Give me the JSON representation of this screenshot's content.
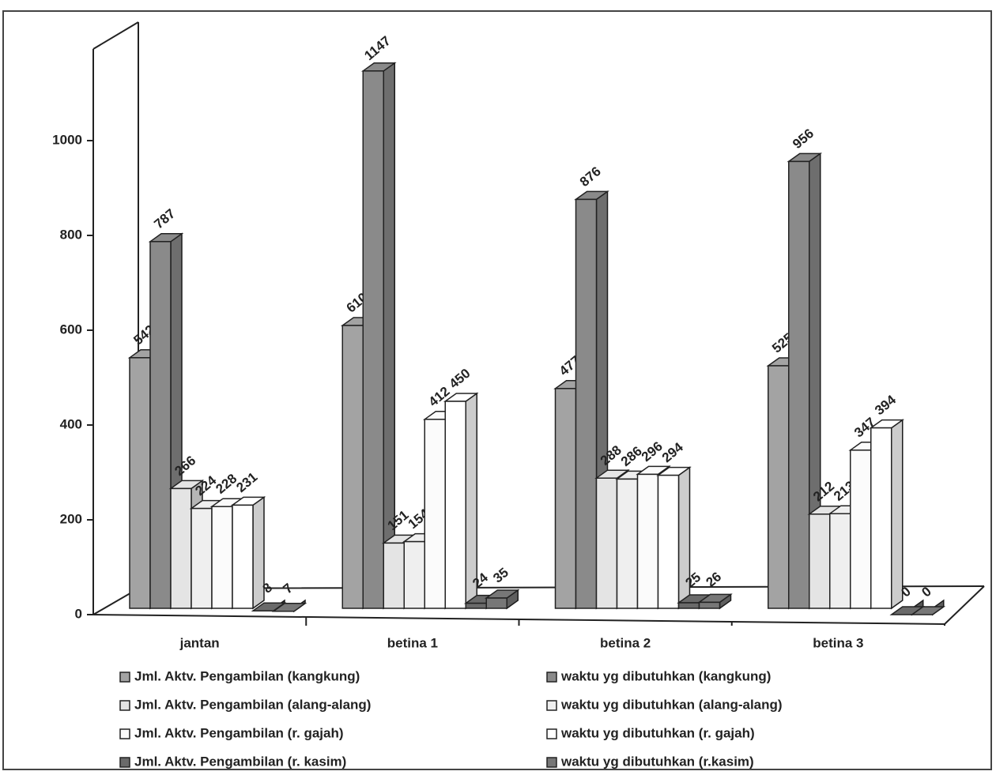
{
  "chart_data": {
    "type": "bar3d",
    "categories": [
      "jantan",
      "betina 1",
      "betina 2",
      "betina 3"
    ],
    "series": [
      {
        "name": "Jml. Aktv. Pengambilan (kangkung)",
        "color": "#a3a3a3",
        "values": [
          542,
          610,
          477,
          525
        ]
      },
      {
        "name": "waktu yg dibutuhkan (kangkung)",
        "color": "#8a8a8a",
        "values": [
          787,
          1147,
          876,
          956
        ]
      },
      {
        "name": "Jml. Aktv. Pengambilan (alang-alang)",
        "color": "#e4e4e4",
        "values": [
          266,
          151,
          288,
          212
        ]
      },
      {
        "name": "waktu yg dibutuhkan (alang-alang)",
        "color": "#efefef",
        "values": [
          224,
          154,
          286,
          213
        ]
      },
      {
        "name": "Jml. Aktv. Pengambilan (r. gajah)",
        "color": "#fbfbfb",
        "values": [
          228,
          412,
          296,
          347
        ]
      },
      {
        "name": "waktu yg dibutuhkan (r. gajah)",
        "color": "#ffffff",
        "values": [
          231,
          450,
          294,
          394
        ]
      },
      {
        "name": "Jml. Aktv. Pengambilan (r. kasim)",
        "color": "#6a6a6a",
        "values": [
          8,
          24,
          25,
          0
        ]
      },
      {
        "name": "waktu yg dibutuhkan (r.kasim)",
        "color": "#777777",
        "values": [
          7,
          35,
          26,
          0
        ]
      }
    ],
    "ylim": [
      0,
      1200
    ],
    "yticks": [
      0,
      200,
      400,
      600,
      800,
      1000
    ]
  }
}
